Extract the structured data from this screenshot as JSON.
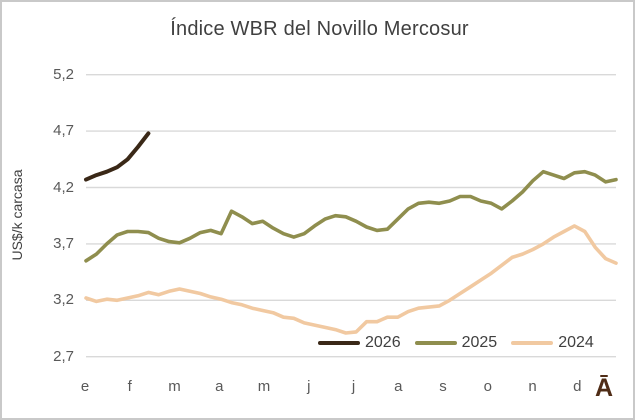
{
  "chart_data": {
    "type": "line",
    "title": "Índice WBR del Novillo Mercosur",
    "ylabel": "US$/k carcasa",
    "ylim": [
      2.7,
      5.2
    ],
    "yticks": [
      5.2,
      4.7,
      4.2,
      3.7,
      3.2,
      2.7
    ],
    "ytick_labels": [
      "5,2",
      "4,7",
      "4,2",
      "3,7",
      "3,2",
      "2,7"
    ],
    "x_month_labels": [
      "e",
      "f",
      "m",
      "a",
      "m",
      "j",
      "j",
      "a",
      "s",
      "o",
      "n",
      "d"
    ],
    "x_unit": "weeks",
    "grid": true,
    "legend_position": "inside-bottom-right",
    "series": [
      {
        "name": "2026",
        "color": "#3a2817",
        "values": [
          4.27,
          4.31,
          4.34,
          4.38,
          4.45,
          4.56,
          4.68
        ]
      },
      {
        "name": "2025",
        "color": "#8f8e4e",
        "values": [
          3.55,
          3.61,
          3.7,
          3.78,
          3.81,
          3.81,
          3.8,
          3.75,
          3.72,
          3.71,
          3.75,
          3.8,
          3.82,
          3.79,
          3.99,
          3.94,
          3.88,
          3.9,
          3.84,
          3.79,
          3.76,
          3.79,
          3.86,
          3.92,
          3.95,
          3.94,
          3.9,
          3.85,
          3.82,
          3.83,
          3.92,
          4.01,
          4.06,
          4.07,
          4.06,
          4.08,
          4.12,
          4.12,
          4.08,
          4.06,
          4.01,
          4.08,
          4.16,
          4.26,
          4.34,
          4.31,
          4.28,
          4.33,
          4.34,
          4.31,
          4.25,
          4.27
        ]
      },
      {
        "name": "2024",
        "color": "#f1c9a1",
        "values": [
          3.22,
          3.19,
          3.21,
          3.2,
          3.22,
          3.24,
          3.27,
          3.25,
          3.28,
          3.3,
          3.28,
          3.26,
          3.23,
          3.21,
          3.18,
          3.16,
          3.13,
          3.11,
          3.09,
          3.05,
          3.04,
          3.0,
          2.98,
          2.96,
          2.94,
          2.91,
          2.92,
          3.01,
          3.01,
          3.05,
          3.05,
          3.1,
          3.13,
          3.14,
          3.15,
          3.2,
          3.26,
          3.32,
          3.38,
          3.44,
          3.51,
          3.58,
          3.61,
          3.65,
          3.7,
          3.76,
          3.81,
          3.86,
          3.81,
          3.67,
          3.57,
          3.53
        ]
      }
    ],
    "watermark": "Ā"
  },
  "colors": {
    "grid": "#d9d9d9",
    "title_text": "#404040",
    "tick_text": "#595959",
    "watermark": "#4f2c16",
    "frame_border": "#c9c9c9"
  }
}
